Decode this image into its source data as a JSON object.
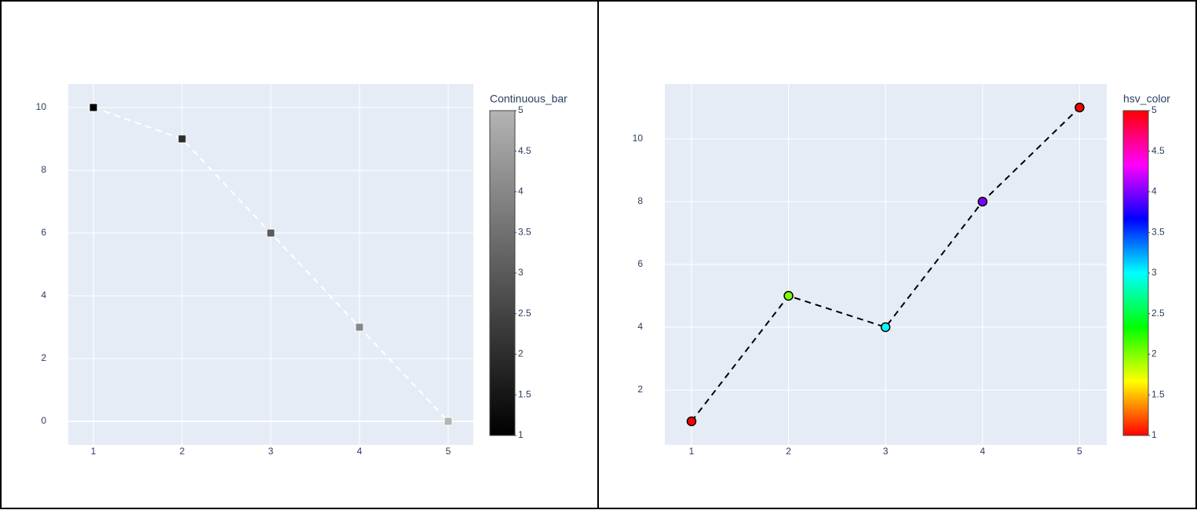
{
  "chart_data": [
    {
      "type": "scatter",
      "x": [
        1,
        2,
        3,
        4,
        5
      ],
      "values": [
        10,
        9,
        6,
        3,
        0
      ],
      "marker_colors": [
        1,
        2,
        3,
        4,
        5
      ],
      "marker_symbol": "square",
      "line_color": "#ffffff",
      "line_dash": "dash",
      "colorscale": [
        "#000000",
        "#b4b4b4"
      ],
      "colorbar": {
        "title": "Continuous_bar",
        "lim": [
          1,
          5
        ],
        "ticks": [
          1,
          1.5,
          2,
          2.5,
          3,
          3.5,
          4,
          4.5,
          5
        ]
      },
      "xlim": [
        0.717,
        5.283
      ],
      "xticks": [
        1,
        2,
        3,
        4,
        5
      ],
      "ylim": [
        -0.75,
        10.75
      ],
      "yticks": [
        0,
        2,
        4,
        6,
        8,
        10
      ],
      "grid": true
    },
    {
      "type": "scatter",
      "x": [
        1,
        2,
        3,
        4,
        5
      ],
      "values": [
        1,
        5,
        4,
        8,
        11
      ],
      "marker_colors": [
        1,
        2,
        3,
        4,
        5
      ],
      "marker_symbol": "circle",
      "line_color": "#000000",
      "line_dash": "dash",
      "colorscale": [
        "#ff0000",
        "#ffff00",
        "#00ff00",
        "#00ffff",
        "#0000ff",
        "#ff00ff",
        "#ff0000"
      ],
      "colorbar": {
        "title": "hsv_color",
        "lim": [
          1,
          5
        ],
        "ticks": [
          1,
          1.5,
          2,
          2.5,
          3,
          3.5,
          4,
          4.5,
          5
        ]
      },
      "xlim": [
        0.725,
        5.28
      ],
      "xticks": [
        1,
        2,
        3,
        4,
        5
      ],
      "ylim": [
        0.25,
        11.75
      ],
      "yticks": [
        2,
        4,
        6,
        8,
        10
      ],
      "grid": true
    }
  ]
}
